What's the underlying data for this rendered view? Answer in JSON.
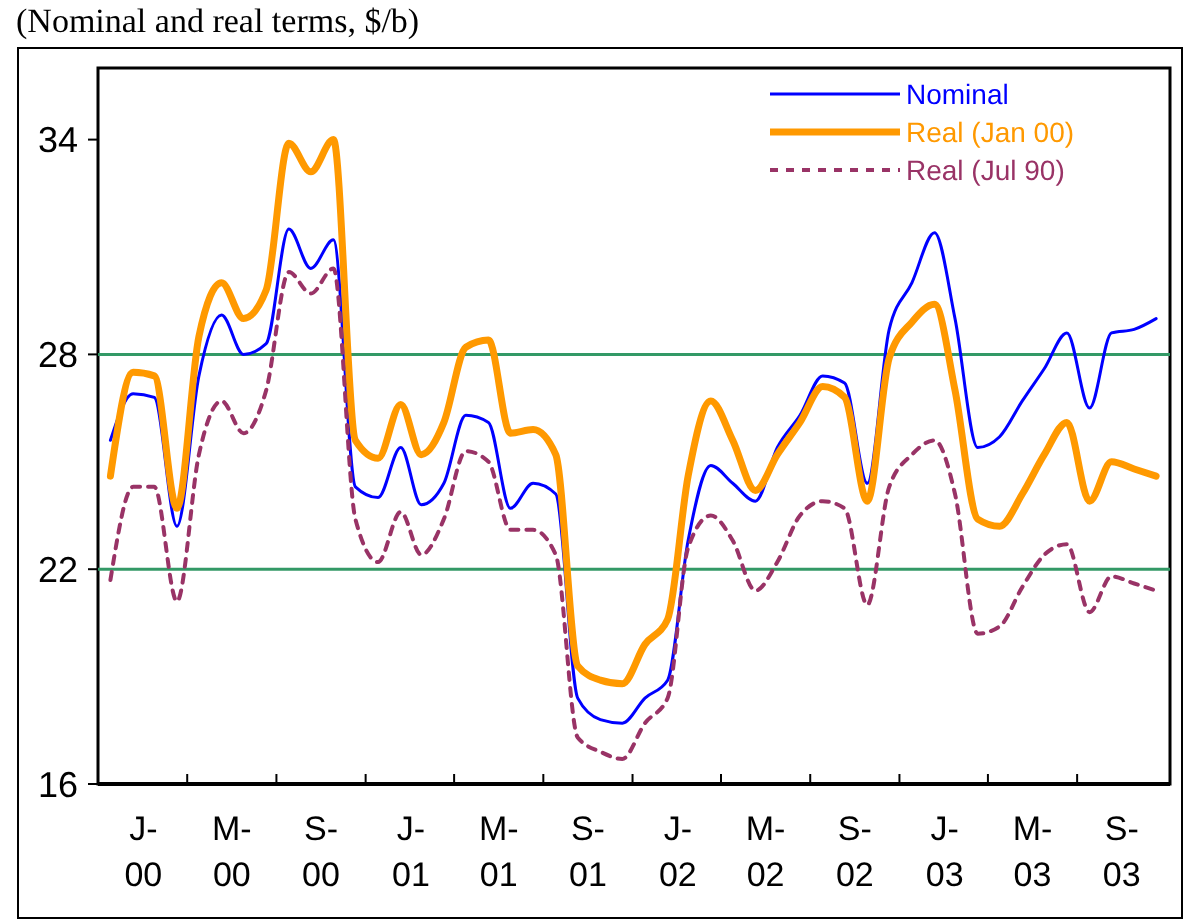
{
  "chart_data": {
    "type": "line",
    "title": "(Nominal and real terms, $/b)",
    "x": [
      "2000-01",
      "2000-02",
      "2000-03",
      "2000-04",
      "2000-05",
      "2000-06",
      "2000-07",
      "2000-08",
      "2000-09",
      "2000-10",
      "2000-11",
      "2000-12",
      "2001-01",
      "2001-02",
      "2001-03",
      "2001-04",
      "2001-05",
      "2001-06",
      "2001-07",
      "2001-08",
      "2001-09",
      "2001-10",
      "2001-11",
      "2001-12",
      "2002-01",
      "2002-02",
      "2002-03",
      "2002-04",
      "2002-05",
      "2002-06",
      "2002-07",
      "2002-08",
      "2002-09",
      "2002-10",
      "2002-11",
      "2002-12",
      "2003-01",
      "2003-02",
      "2003-03",
      "2003-04",
      "2003-05",
      "2003-06",
      "2003-07",
      "2003-08",
      "2003-09",
      "2003-10",
      "2003-11",
      "2003-12"
    ],
    "xlim": [
      "1999-12-15",
      "2003-12-20"
    ],
    "xticks": [
      {
        "value": "2000-02-15",
        "label": "J-\n00"
      },
      {
        "value": "2000-04-15",
        "label": null
      },
      {
        "value": "2000-06-15",
        "label": "M-\n00"
      },
      {
        "value": "2000-08-15",
        "label": null
      },
      {
        "value": "2000-10-15",
        "label": "S-\n00"
      },
      {
        "value": "2000-12-15",
        "label": null
      },
      {
        "value": "2001-02-15",
        "label": "J-\n01"
      },
      {
        "value": "2001-04-15",
        "label": null
      },
      {
        "value": "2001-06-15",
        "label": "M-\n01"
      },
      {
        "value": "2001-08-15",
        "label": null
      },
      {
        "value": "2001-10-15",
        "label": "S-\n01"
      },
      {
        "value": "2001-12-15",
        "label": null
      },
      {
        "value": "2002-02-15",
        "label": "J-\n02"
      },
      {
        "value": "2002-04-15",
        "label": null
      },
      {
        "value": "2002-06-15",
        "label": "M-\n02"
      },
      {
        "value": "2002-08-15",
        "label": null
      },
      {
        "value": "2002-10-15",
        "label": "S-\n02"
      },
      {
        "value": "2002-12-15",
        "label": null
      },
      {
        "value": "2003-02-15",
        "label": "J-\n03"
      },
      {
        "value": "2003-04-15",
        "label": null
      },
      {
        "value": "2003-06-15",
        "label": "M-\n03"
      },
      {
        "value": "2003-08-15",
        "label": null
      },
      {
        "value": "2003-10-15",
        "label": "S-\n03"
      }
    ],
    "ylim": [
      16,
      36
    ],
    "yticks": [
      16,
      22,
      28,
      34
    ],
    "grid": false,
    "legend": "top right",
    "marker": "none",
    "ref_lines": [
      {
        "axis": "y",
        "value": 22,
        "color": "#339966"
      },
      {
        "axis": "y",
        "value": 28,
        "color": "#339966"
      }
    ],
    "series": [
      {
        "name": "Nominal",
        "color": "#0000ff",
        "line_style": "solid",
        "values": [
          25.6,
          26.9,
          26.8,
          23.2,
          27.4,
          29.1,
          28.0,
          28.3,
          31.5,
          30.4,
          31.2,
          24.3,
          24.0,
          25.4,
          23.8,
          24.4,
          26.3,
          26.1,
          23.7,
          24.4,
          24.1,
          18.4,
          17.8,
          17.7,
          18.4,
          18.9,
          22.8,
          24.9,
          24.4,
          23.9,
          25.4,
          26.3,
          27.4,
          27.2,
          24.4,
          28.7,
          30.0,
          31.4,
          29.0,
          25.4,
          25.7,
          26.7,
          27.6,
          28.6,
          26.5,
          28.6,
          28.7,
          29.0
        ]
      },
      {
        "name": "Real (Jan 00)",
        "color": "#ff9900",
        "line_style": "solid",
        "values": [
          24.6,
          27.5,
          27.4,
          23.7,
          28.5,
          30.0,
          29.0,
          29.8,
          33.9,
          33.1,
          34.0,
          25.6,
          25.1,
          26.6,
          25.2,
          26.1,
          28.2,
          28.4,
          25.8,
          25.9,
          25.2,
          19.3,
          18.9,
          18.8,
          19.9,
          20.6,
          24.6,
          26.7,
          25.6,
          24.2,
          25.2,
          26.1,
          27.1,
          26.8,
          23.9,
          27.9,
          28.9,
          29.4,
          27.0,
          23.4,
          23.2,
          24.1,
          25.2,
          26.1,
          23.9,
          25.0,
          24.8,
          24.6
        ]
      },
      {
        "name": "Real (Jul 90)",
        "color": "#993366",
        "line_style": "dashed",
        "values": [
          21.7,
          24.3,
          24.3,
          21.1,
          25.2,
          26.7,
          25.8,
          27.0,
          30.3,
          29.7,
          30.4,
          23.4,
          22.2,
          23.6,
          22.4,
          23.4,
          25.3,
          25.0,
          23.1,
          23.1,
          22.4,
          17.3,
          16.9,
          16.7,
          17.7,
          18.4,
          22.6,
          23.5,
          22.8,
          21.4,
          22.2,
          23.5,
          23.9,
          23.7,
          21.0,
          24.3,
          25.2,
          25.6,
          24.1,
          20.2,
          20.4,
          21.5,
          22.4,
          22.7,
          20.8,
          21.8,
          21.6,
          21.4
        ]
      }
    ]
  }
}
